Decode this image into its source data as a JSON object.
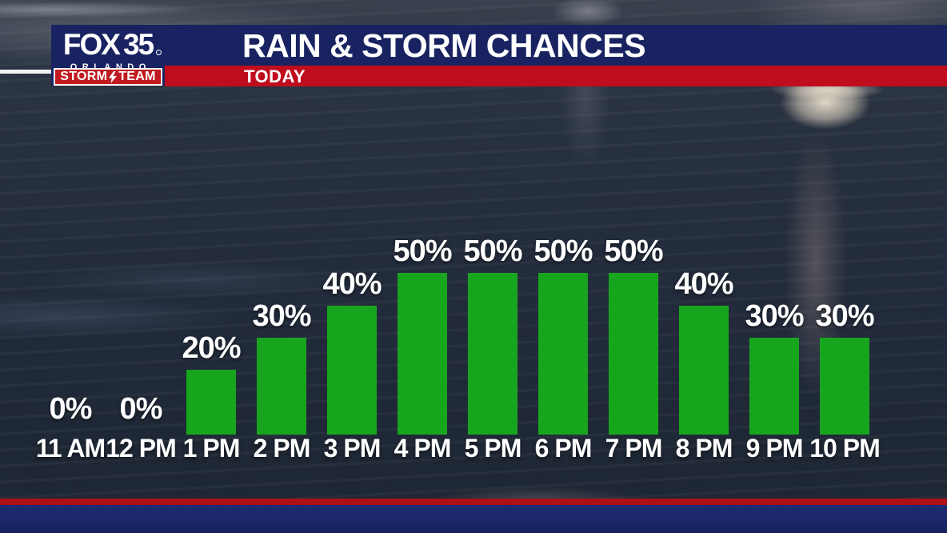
{
  "branding": {
    "station_name": "FOX",
    "station_number": "35",
    "market": "ORLANDO",
    "team_left": "STORM",
    "team_right": "TEAM"
  },
  "header": {
    "title": "RAIN & STORM CHANCES",
    "subtitle": "TODAY"
  },
  "chart_data": {
    "type": "bar",
    "title": "RAIN & STORM CHANCES",
    "subtitle": "TODAY",
    "categories": [
      "11 AM",
      "12 PM",
      "1 PM",
      "2 PM",
      "3 PM",
      "4 PM",
      "5 PM",
      "6 PM",
      "7 PM",
      "8 PM",
      "9 PM",
      "10 PM"
    ],
    "values": [
      0,
      0,
      20,
      30,
      40,
      50,
      50,
      50,
      50,
      40,
      30,
      30
    ],
    "value_labels": [
      "0%",
      "0%",
      "20%",
      "30%",
      "40%",
      "50%",
      "50%",
      "50%",
      "50%",
      "40%",
      "30%",
      "30%"
    ],
    "unit": "%",
    "xlabel": "",
    "ylabel": "",
    "ylim": [
      0,
      60
    ],
    "grid": false,
    "legend": false,
    "bar_color": "#18a51e",
    "label_color": "#ffffff"
  },
  "colors": {
    "header_navy": "#1a2361",
    "accent_red": "#c00d1e",
    "logo_navy": "#1a2361",
    "logo_badge_red": "#c01a20",
    "bar_green": "#18a51e",
    "bottom_red": "#ad1016",
    "bottom_navy": "#1b286a",
    "stripe_white": "#f2f3f4",
    "text_white": "#ffffff"
  }
}
